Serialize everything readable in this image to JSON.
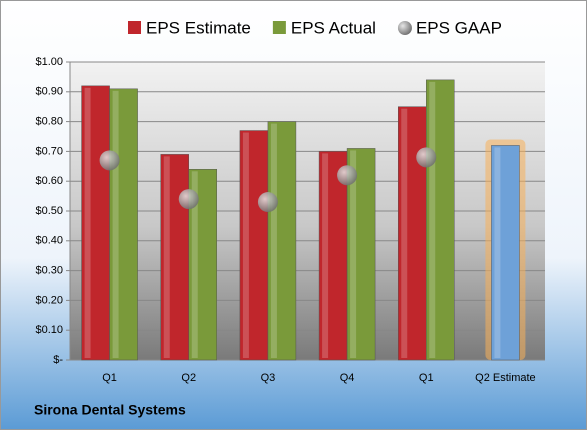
{
  "chart_data": {
    "type": "bar",
    "categories": [
      "Q1",
      "Q2",
      "Q3",
      "Q4",
      "Q1",
      "Q2 Estimate"
    ],
    "series": [
      {
        "name": "EPS Estimate",
        "color": "#c0262c",
        "colors": [
          "#c0262c",
          "#c0262c",
          "#c0262c",
          "#c0262c",
          "#c0262c",
          "#6ea1d8"
        ],
        "values": [
          0.92,
          0.69,
          0.77,
          0.7,
          0.85,
          0.72
        ]
      },
      {
        "name": "EPS Actual",
        "color": "#7a9a3a",
        "values": [
          0.91,
          0.64,
          0.8,
          0.71,
          0.94,
          null
        ]
      },
      {
        "name": "EPS GAAP",
        "color": "#9a9a9a",
        "marker": "circle",
        "values": [
          0.67,
          0.54,
          0.53,
          0.62,
          0.68,
          null
        ]
      }
    ],
    "ylim": [
      0,
      1
    ],
    "yticks": [
      {
        "value": 0,
        "label": "$-"
      },
      {
        "value": 0.1,
        "label": "$0.10"
      },
      {
        "value": 0.2,
        "label": "$0.20"
      },
      {
        "value": 0.3,
        "label": "$0.30"
      },
      {
        "value": 0.4,
        "label": "$0.40"
      },
      {
        "value": 0.5,
        "label": "$0.50"
      },
      {
        "value": 0.6,
        "label": "$0.60"
      },
      {
        "value": 0.7,
        "label": "$0.70"
      },
      {
        "value": 0.8,
        "label": "$0.80"
      },
      {
        "value": 0.9,
        "label": "$0.90"
      },
      {
        "value": 1,
        "label": "$1.00"
      }
    ],
    "grid": true,
    "legend": "top",
    "footer": "Sirona Dental Systems"
  }
}
